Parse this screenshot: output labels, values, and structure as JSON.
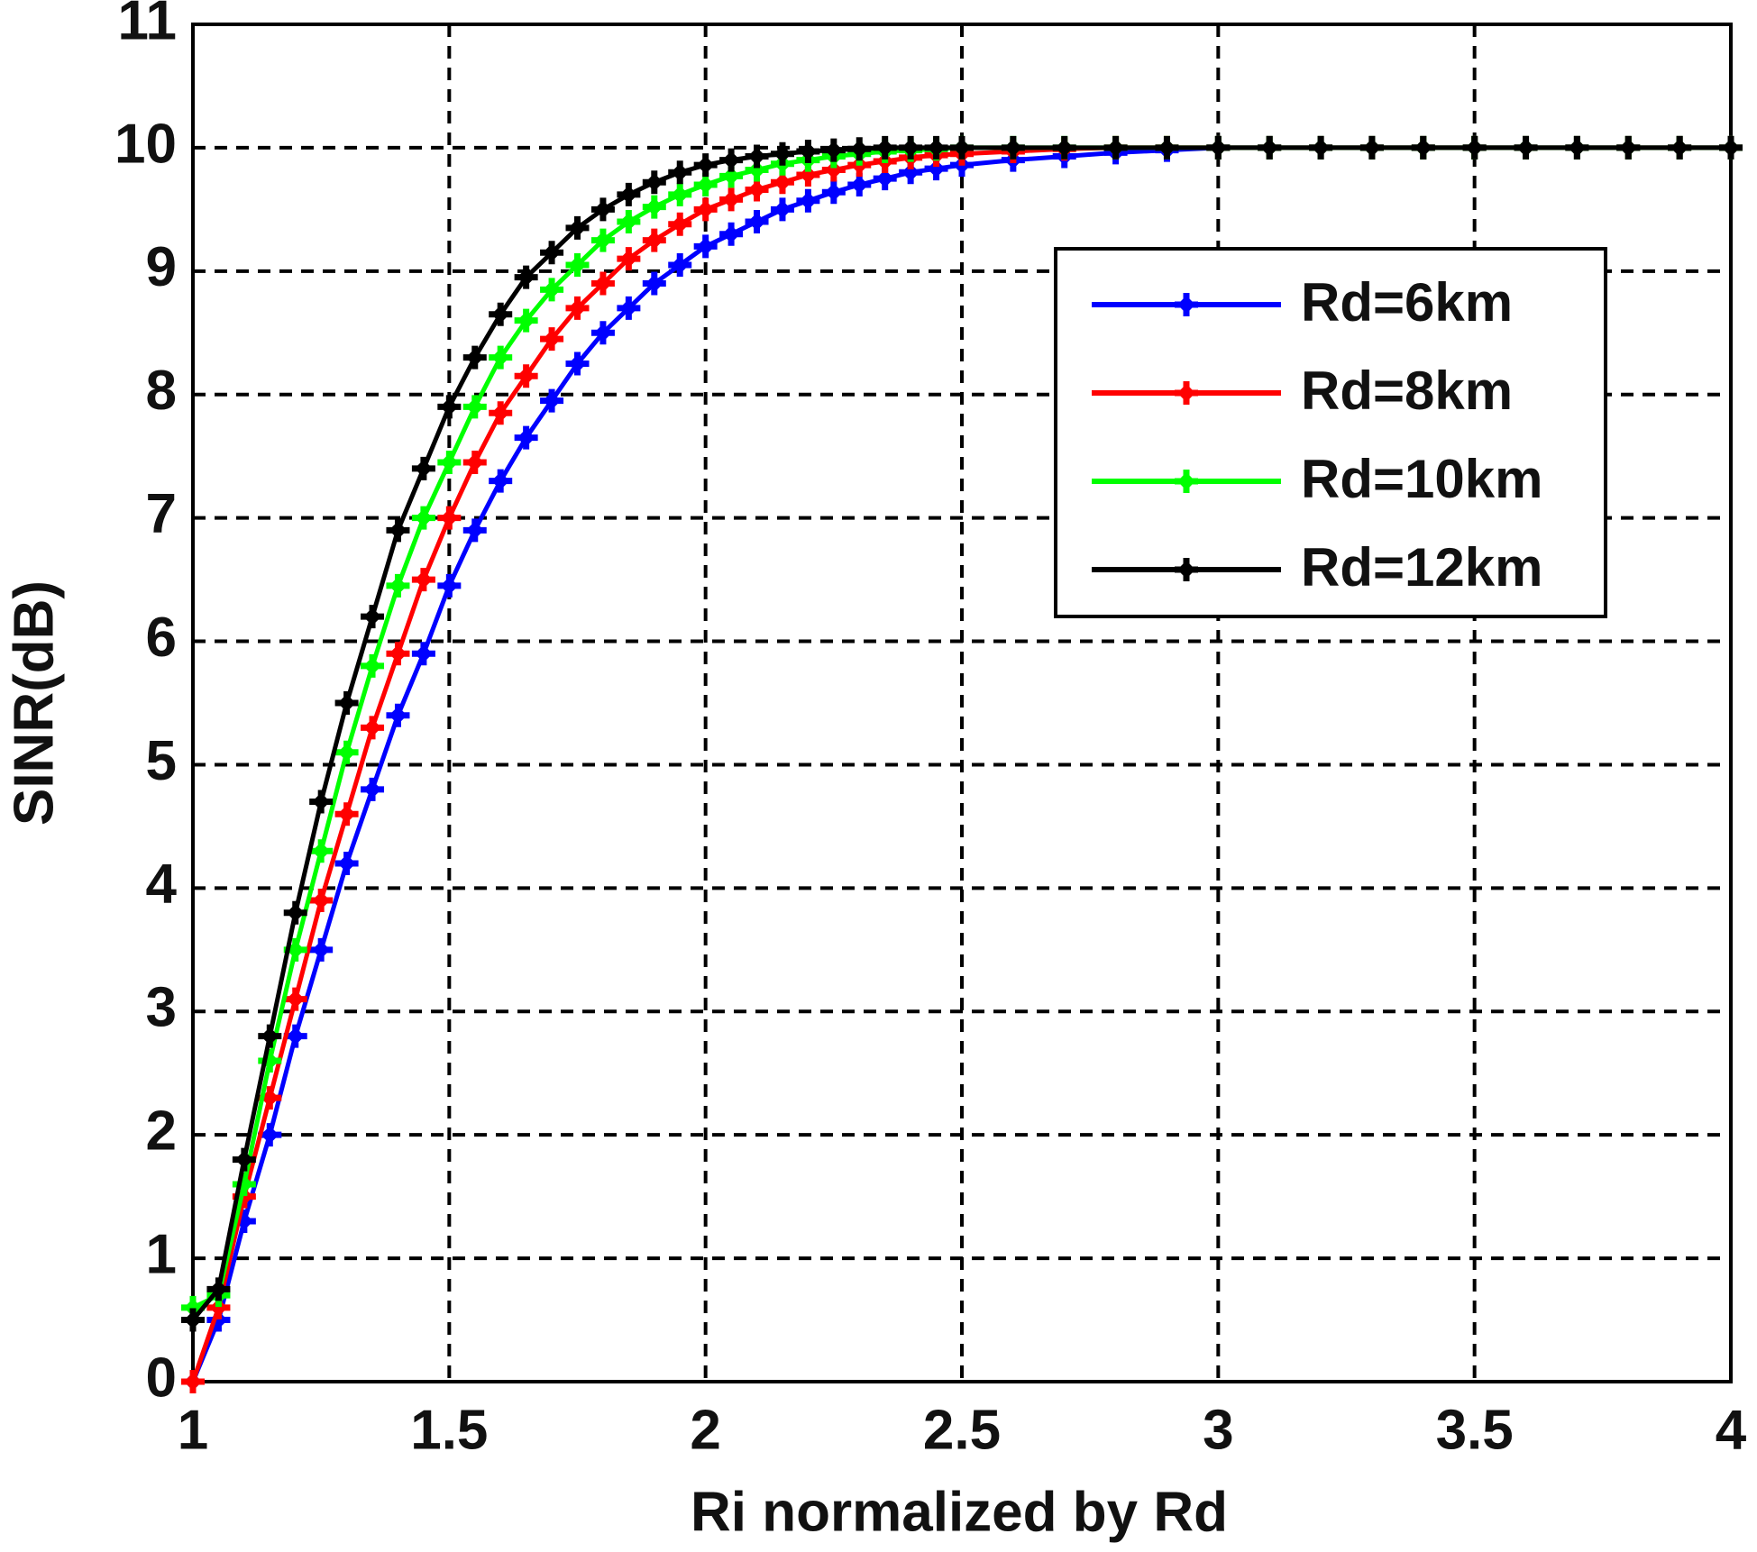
{
  "chart_data": {
    "type": "line",
    "x_label": "Ri normalized by Rd",
    "y_label": "SINR(dB)",
    "x": [
      1.0,
      1.05,
      1.1,
      1.15,
      1.2,
      1.25,
      1.3,
      1.35,
      1.4,
      1.45,
      1.5,
      1.55,
      1.6,
      1.65,
      1.7,
      1.75,
      1.8,
      1.85,
      1.9,
      1.95,
      2.0,
      2.05,
      2.1,
      2.15,
      2.2,
      2.25,
      2.3,
      2.35,
      2.4,
      2.45,
      2.5,
      2.6,
      2.7,
      2.8,
      2.9,
      3.0,
      3.1,
      3.2,
      3.3,
      3.4,
      3.5,
      3.6,
      3.7,
      3.8,
      3.9,
      4.0
    ],
    "series": [
      {
        "name": "Rd=6km",
        "color": "#0000ff",
        "values": [
          0,
          0.5,
          1.3,
          2.0,
          2.8,
          3.5,
          4.2,
          4.8,
          5.4,
          5.9,
          6.45,
          6.9,
          7.3,
          7.65,
          7.95,
          8.25,
          8.5,
          8.7,
          8.9,
          9.05,
          9.2,
          9.3,
          9.4,
          9.5,
          9.57,
          9.64,
          9.7,
          9.75,
          9.8,
          9.83,
          9.86,
          9.9,
          9.93,
          9.96,
          9.98,
          10,
          10,
          10,
          10,
          10,
          10,
          10,
          10,
          10,
          10,
          10
        ]
      },
      {
        "name": "Rd=8km",
        "color": "#ff0000",
        "values": [
          0,
          0.6,
          1.5,
          2.3,
          3.1,
          3.9,
          4.6,
          5.3,
          5.9,
          6.5,
          7.0,
          7.45,
          7.85,
          8.15,
          8.45,
          8.7,
          8.9,
          9.1,
          9.25,
          9.38,
          9.5,
          9.58,
          9.66,
          9.72,
          9.78,
          9.82,
          9.86,
          9.89,
          9.92,
          9.94,
          9.95,
          9.97,
          9.99,
          10,
          10,
          10,
          10,
          10,
          10,
          10,
          10,
          10,
          10,
          10,
          10,
          10
        ]
      },
      {
        "name": "Rd=10km",
        "color": "#00ff00",
        "values": [
          0.6,
          0.7,
          1.6,
          2.6,
          3.5,
          4.3,
          5.1,
          5.8,
          6.45,
          7.0,
          7.45,
          7.9,
          8.3,
          8.6,
          8.85,
          9.05,
          9.25,
          9.4,
          9.52,
          9.62,
          9.7,
          9.77,
          9.82,
          9.87,
          9.9,
          9.93,
          9.95,
          9.97,
          9.98,
          9.99,
          10,
          10,
          10,
          10,
          10,
          10,
          10,
          10,
          10,
          10,
          10,
          10,
          10,
          10,
          10,
          10
        ]
      },
      {
        "name": "Rd=12km",
        "color": "#000000",
        "values": [
          0.5,
          0.75,
          1.8,
          2.8,
          3.8,
          4.7,
          5.5,
          6.2,
          6.9,
          7.4,
          7.9,
          8.3,
          8.65,
          8.95,
          9.15,
          9.35,
          9.5,
          9.62,
          9.72,
          9.8,
          9.86,
          9.9,
          9.93,
          9.95,
          9.97,
          9.98,
          9.99,
          10,
          10,
          10,
          10,
          10,
          10,
          10,
          10,
          10,
          10,
          10,
          10,
          10,
          10,
          10,
          10,
          10,
          10,
          10
        ]
      }
    ],
    "xlim": [
      1,
      4
    ],
    "ylim": [
      0,
      11
    ],
    "xticks": [
      1,
      1.5,
      2,
      2.5,
      3,
      3.5,
      4
    ],
    "yticks": [
      0,
      1,
      2,
      3,
      4,
      5,
      6,
      7,
      8,
      9,
      10,
      11
    ],
    "grid": true,
    "legend": "upper right"
  }
}
